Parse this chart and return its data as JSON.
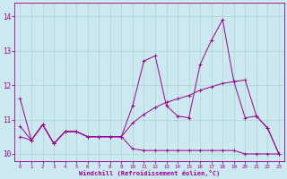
{
  "xlabel": "Windchill (Refroidissement éolien,°C)",
  "bg_color": "#cce8f0",
  "line_color": "#990099",
  "xlim": [
    -0.5,
    23.5
  ],
  "ylim": [
    9.8,
    14.4
  ],
  "xticks": [
    0,
    1,
    2,
    3,
    4,
    5,
    6,
    7,
    8,
    9,
    10,
    11,
    12,
    13,
    14,
    15,
    16,
    17,
    18,
    19,
    20,
    21,
    22,
    23
  ],
  "yticks": [
    10,
    11,
    12,
    13,
    14
  ],
  "grid_color": "#aad8cc",
  "line1_x": [
    0,
    1,
    2,
    3,
    4,
    5,
    6,
    7,
    8,
    9,
    10,
    11,
    12,
    13,
    14,
    15,
    16,
    17,
    18,
    19,
    20,
    21,
    22,
    23
  ],
  "line1_y": [
    11.6,
    10.4,
    10.85,
    10.3,
    10.65,
    10.65,
    10.5,
    10.5,
    10.5,
    10.5,
    11.4,
    12.7,
    12.85,
    11.4,
    11.1,
    11.05,
    12.6,
    13.3,
    13.9,
    12.1,
    11.05,
    11.1,
    10.75,
    10.0
  ],
  "line2_x": [
    0,
    1,
    2,
    3,
    4,
    5,
    6,
    7,
    8,
    9,
    10,
    11,
    12,
    13,
    14,
    15,
    16,
    17,
    18,
    19,
    20,
    21,
    22,
    23
  ],
  "line2_y": [
    10.5,
    10.4,
    10.85,
    10.3,
    10.65,
    10.65,
    10.5,
    10.5,
    10.5,
    10.5,
    10.15,
    10.1,
    10.1,
    10.1,
    10.1,
    10.1,
    10.1,
    10.1,
    10.1,
    10.1,
    10.0,
    10.0,
    10.0,
    10.0
  ],
  "line3_x": [
    0,
    1,
    2,
    3,
    4,
    5,
    6,
    7,
    8,
    9,
    10,
    11,
    12,
    13,
    14,
    15,
    16,
    17,
    18,
    19,
    20,
    21,
    22,
    23
  ],
  "line3_y": [
    10.8,
    10.4,
    10.85,
    10.3,
    10.65,
    10.65,
    10.5,
    10.5,
    10.5,
    10.5,
    10.9,
    11.15,
    11.35,
    11.5,
    11.6,
    11.7,
    11.85,
    11.95,
    12.05,
    12.1,
    12.15,
    11.1,
    10.75,
    10.0
  ]
}
